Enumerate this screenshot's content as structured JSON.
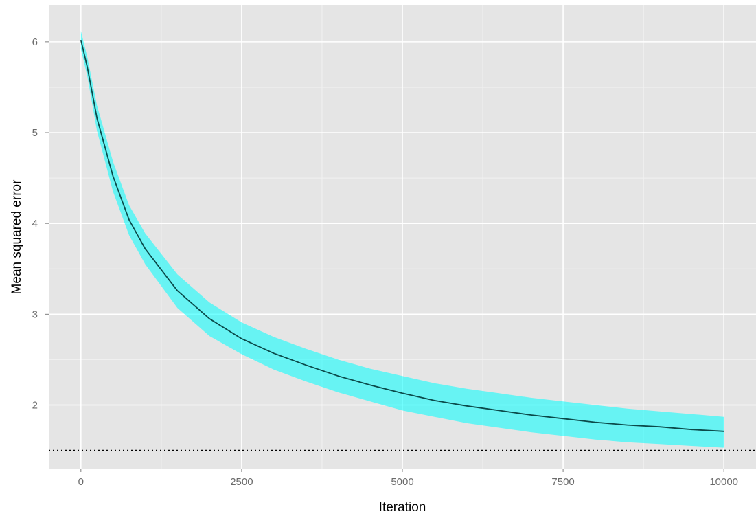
{
  "chart_data": {
    "type": "line",
    "title": "",
    "xlabel": "Iteration",
    "ylabel": "Mean squared error",
    "xlim": [
      -500,
      10500
    ],
    "ylim": [
      1.3,
      6.4
    ],
    "xticks": [
      {
        "value": 0,
        "label": "0"
      },
      {
        "value": 2500,
        "label": "2500"
      },
      {
        "value": 5000,
        "label": "5000"
      },
      {
        "value": 7500,
        "label": "7500"
      },
      {
        "value": 10000,
        "label": "10000"
      }
    ],
    "yticks": [
      {
        "value": 2,
        "label": "2"
      },
      {
        "value": 3,
        "label": "3"
      },
      {
        "value": 4,
        "label": "4"
      },
      {
        "value": 5,
        "label": "5"
      },
      {
        "value": 6,
        "label": "6"
      }
    ],
    "grid": true,
    "legend": "none",
    "series": [
      {
        "x": [
          0,
          100,
          250,
          500,
          750,
          1000,
          1500,
          2000,
          2500,
          3000,
          3500,
          4000,
          4500,
          5000,
          5500,
          6000,
          6500,
          7000,
          7500,
          8000,
          8500,
          9000,
          9500,
          10000
        ],
        "mean": [
          6.02,
          5.72,
          5.16,
          4.52,
          4.04,
          3.72,
          3.26,
          2.95,
          2.73,
          2.57,
          2.44,
          2.32,
          2.22,
          2.13,
          2.05,
          1.99,
          1.94,
          1.89,
          1.85,
          1.81,
          1.78,
          1.76,
          1.73,
          1.71
        ],
        "band_lower": [
          5.92,
          5.62,
          5.02,
          4.35,
          3.87,
          3.55,
          3.07,
          2.76,
          2.56,
          2.39,
          2.26,
          2.14,
          2.04,
          1.94,
          1.87,
          1.8,
          1.75,
          1.7,
          1.66,
          1.62,
          1.59,
          1.57,
          1.55,
          1.53
        ],
        "band_upper": [
          6.12,
          5.83,
          5.3,
          4.68,
          4.2,
          3.89,
          3.44,
          3.13,
          2.91,
          2.75,
          2.62,
          2.5,
          2.4,
          2.32,
          2.24,
          2.18,
          2.13,
          2.08,
          2.04,
          2.0,
          1.96,
          1.93,
          1.9,
          1.87
        ],
        "line_color": "#0b4a4a",
        "band_color": "#00ffff"
      }
    ],
    "reference_line": {
      "y": 1.5,
      "style": "dotted",
      "color": "#000000"
    },
    "panel_background": "#e5e5e5",
    "grid_color": "#ffffff"
  }
}
